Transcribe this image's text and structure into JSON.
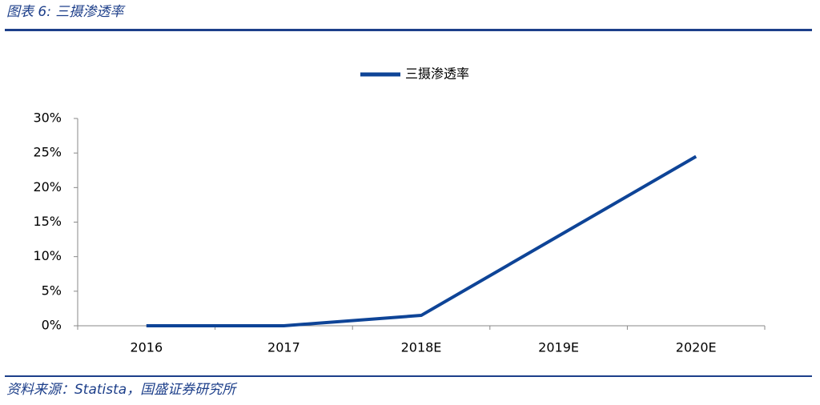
{
  "header": {
    "title": "图表 6:  三摄渗透率"
  },
  "chart_data": {
    "type": "line",
    "categories": [
      "2016",
      "2017",
      "2018E",
      "2019E",
      "2020E"
    ],
    "series": [
      {
        "name": "三摄渗透率",
        "color": "#0e4497",
        "values": [
          0,
          0,
          1.5,
          13,
          24.5
        ]
      }
    ],
    "ylim": [
      0,
      30
    ],
    "yticks": [
      {
        "value": 0,
        "label": "0%"
      },
      {
        "value": 5,
        "label": "5%"
      },
      {
        "value": 10,
        "label": "10%"
      },
      {
        "value": 15,
        "label": "15%"
      },
      {
        "value": 20,
        "label": "20%"
      },
      {
        "value": 25,
        "label": "25%"
      },
      {
        "value": 30,
        "label": "30%"
      }
    ],
    "grid": false,
    "legend": "top"
  },
  "footer": {
    "source": "资料来源：Statista，国盛证券研究所"
  }
}
